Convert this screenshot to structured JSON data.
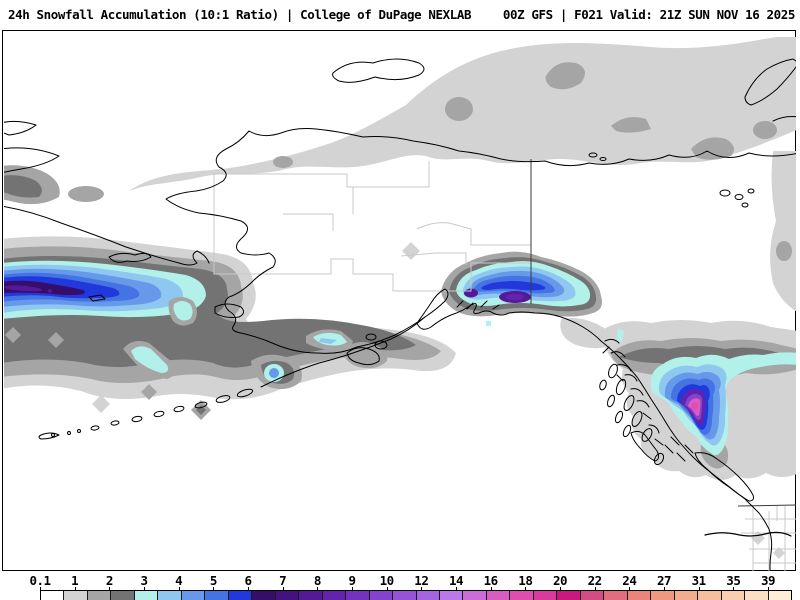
{
  "header": {
    "product_title": "24h Snowfall Accumulation (10:1 Ratio) | College of DuPage NEXLAB",
    "model_info": "00Z GFS | F021 Valid: 21Z SUN NOV 16 2025"
  },
  "map": {
    "description": "GFS model 24-hour snowfall accumulation forecast over Alaska, the Bering Sea, Yukon and the Pacific Northwest",
    "background_color": "#ffffff",
    "coastline_color": "#000000",
    "political_boundary_color": "#c9c9c9",
    "state_border_color": "#3a3a3a",
    "frame_color": "#000000"
  },
  "legend": {
    "unit": "inches",
    "tick_labels": [
      "0.1",
      "1",
      "2",
      "3",
      "4",
      "5",
      "6",
      "7",
      "8",
      "9",
      "10",
      "12",
      "14",
      "16",
      "18",
      "20",
      "22",
      "24",
      "27",
      "31",
      "35",
      "39"
    ],
    "colors": [
      "#ffffff",
      "#d3d3d3",
      "#a5a5a5",
      "#737373",
      "#b2f0ea",
      "#8ec8f0",
      "#6699ea",
      "#4473e3",
      "#2139dc",
      "#360d68",
      "#45117e",
      "#541996",
      "#6423ac",
      "#7432be",
      "#8542cc",
      "#9653d8",
      "#a764e2",
      "#ba78ea",
      "#cc6cd8",
      "#d95cc4",
      "#e04db0",
      "#da3a9b",
      "#cc1780",
      "#d44c84",
      "#e26c80",
      "#eb847b",
      "#f0987e",
      "#f3ac8c",
      "#f6be9c",
      "#f9cfaf",
      "#fbdfc4",
      "#fdeed8"
    ]
  }
}
